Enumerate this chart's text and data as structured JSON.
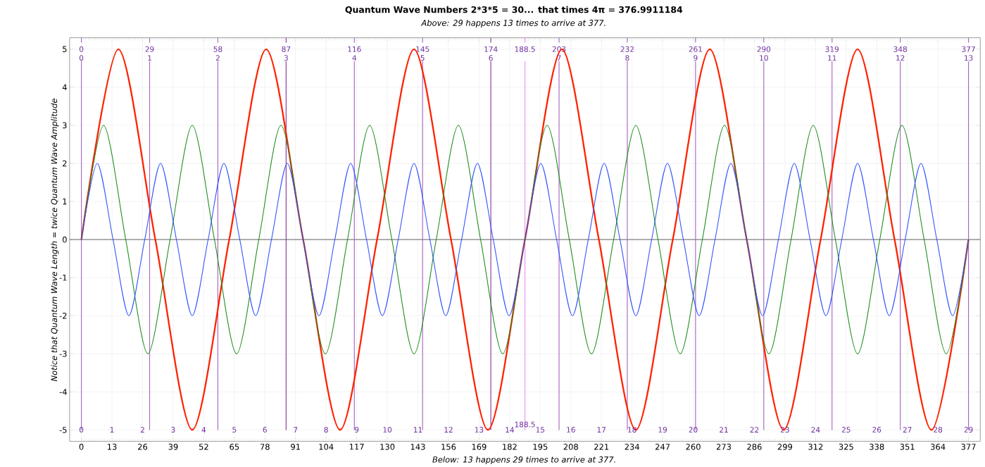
{
  "chart_data": {
    "type": "line",
    "title": "Quantum Wave Numbers 2*3*5 = 30... that times 4π = 376.9911184",
    "subtitle": "Above: 29 happens 13 times to arrive at 377.",
    "xlabel": "Below: 13 happens 29 times to arrive at 377.",
    "ylabel": "Notice that Quantum Wave Length = twice Quantum Wave Amplitude",
    "xlim": [
      -5,
      382
    ],
    "ylim": [
      -5.3,
      5.3
    ],
    "xticks": [
      0,
      13,
      26,
      39,
      52,
      65,
      78,
      91,
      104,
      117,
      130,
      143,
      156,
      169,
      182,
      195,
      208,
      221,
      234,
      247,
      260,
      273,
      286,
      299,
      312,
      325,
      338,
      351,
      364,
      377
    ],
    "yticks": [
      -5,
      -4,
      -3,
      -2,
      -1,
      0,
      1,
      2,
      3,
      4,
      5
    ],
    "grid": true,
    "marker": "none",
    "line_style": "solid",
    "series": [
      {
        "color": "#ff2200",
        "x": [
          0,
          15.71,
          31.42,
          47.12,
          62.83,
          78.54,
          94.25,
          109.96,
          125.66,
          141.37,
          157.08,
          172.79,
          188.5,
          204.2,
          219.91,
          235.62,
          251.33,
          267.04,
          282.74,
          298.45,
          314.16,
          329.87,
          345.58,
          361.28,
          376.99
        ],
        "values": [
          0,
          5,
          0,
          -5,
          0,
          5,
          0,
          -5,
          0,
          5,
          0,
          -5,
          0,
          5,
          0,
          -5,
          0,
          5,
          0,
          -5,
          0,
          5,
          0,
          -5,
          0
        ]
      },
      {
        "color": "#1a8a1a",
        "x": [
          0,
          9.42,
          18.85,
          28.27,
          37.7,
          47.12,
          56.55,
          65.97,
          75.4,
          84.82,
          94.25,
          103.67,
          113.1,
          122.52,
          131.95,
          141.37,
          150.8,
          160.22,
          169.65,
          179.07,
          188.5,
          197.92,
          207.35,
          216.77,
          226.19,
          235.62,
          245.04,
          254.47,
          263.89,
          273.32,
          282.74,
          292.17,
          301.59,
          311.02,
          320.44,
          329.87,
          339.29,
          348.72,
          358.14,
          367.57,
          376.99
        ],
        "values": [
          0,
          3,
          0,
          -3,
          0,
          3,
          0,
          -3,
          0,
          3,
          0,
          -3,
          0,
          3,
          0,
          -3,
          0,
          3,
          0,
          -3,
          0,
          3,
          0,
          -3,
          0,
          3,
          0,
          -3,
          0,
          3,
          0,
          -3,
          0,
          3,
          0,
          -3,
          0,
          3,
          0,
          -3,
          0
        ]
      },
      {
        "color": "#3050ff",
        "x": [
          0,
          6.73,
          13.46,
          20.2,
          26.93,
          33.66,
          40.39,
          47.12,
          53.86,
          60.59,
          67.32,
          74.05,
          80.78,
          87.52,
          94.25,
          100.98,
          107.71,
          114.44,
          121.18,
          127.91,
          134.64,
          141.37,
          148.1,
          154.84,
          161.57,
          168.3,
          175.03,
          181.76,
          188.5,
          195.23,
          201.96,
          208.69,
          215.42,
          222.16,
          228.89,
          235.62,
          242.35,
          249.08,
          255.82,
          262.55,
          269.28,
          276.01,
          282.74,
          289.48,
          296.21,
          302.94,
          309.67,
          316.4,
          323.14,
          329.87,
          336.6,
          343.33,
          350.06,
          356.8,
          363.53,
          370.26,
          376.99
        ],
        "values": [
          0,
          2,
          0,
          -2,
          0,
          2,
          0,
          -2,
          0,
          2,
          0,
          -2,
          0,
          2,
          0,
          -2,
          0,
          2,
          0,
          -2,
          0,
          2,
          0,
          -2,
          0,
          2,
          0,
          -2,
          0,
          2,
          0,
          -2,
          0,
          2,
          0,
          -2,
          0,
          2,
          0,
          -2,
          0,
          2,
          0,
          -2,
          0,
          2,
          0,
          -2,
          0,
          2,
          0,
          -2,
          0,
          2,
          0,
          -2,
          0
        ]
      }
    ],
    "ref_lines": [
      {
        "axis": "y",
        "value": 0,
        "color": "#808080"
      },
      {
        "axis": "x",
        "value": 0,
        "label": "0",
        "color": "#a868c0"
      },
      {
        "axis": "x",
        "value": 29,
        "label": "29",
        "color": "#a868c0"
      },
      {
        "axis": "x",
        "value": 58,
        "label": "58",
        "color": "#a868c0"
      },
      {
        "axis": "x",
        "value": 87,
        "label": "87",
        "color": "#8a3a9a"
      },
      {
        "axis": "x",
        "value": 116,
        "label": "116",
        "color": "#a868c0"
      },
      {
        "axis": "x",
        "value": 145,
        "label": "145",
        "color": "#a868c0"
      },
      {
        "axis": "x",
        "value": 174,
        "label": "174",
        "color": "#8a3a9a"
      },
      {
        "axis": "x",
        "value": 203,
        "label": "203",
        "color": "#a868c0"
      },
      {
        "axis": "x",
        "value": 232,
        "label": "232",
        "color": "#a868c0"
      },
      {
        "axis": "x",
        "value": 261,
        "label": "261",
        "color": "#a868c0"
      },
      {
        "axis": "x",
        "value": 290,
        "label": "290",
        "color": "#a868c0"
      },
      {
        "axis": "x",
        "value": 319,
        "label": "319",
        "color": "#a868c0"
      },
      {
        "axis": "x",
        "value": 348,
        "label": "348",
        "color": "#a868c0"
      },
      {
        "axis": "x",
        "value": 377,
        "label": "377",
        "color": "#a868c0"
      },
      {
        "axis": "x",
        "value": 188.5,
        "label": "188.5",
        "color": "#f090f0"
      }
    ],
    "annotations": [
      {
        "text": "188.5",
        "x": 188.5,
        "y": -4.95
      },
      "0",
      "1",
      "2",
      "3",
      "4",
      "5",
      "6",
      "7",
      "8",
      "9",
      "10",
      "11",
      "12",
      "13",
      "0",
      "1",
      "2",
      "3",
      "4",
      "5",
      "6",
      "7",
      "8",
      "9",
      "10",
      "11",
      "12",
      "13",
      "14",
      "15",
      "16",
      "17",
      "18",
      "19",
      "20",
      "21",
      "22",
      "23",
      "24",
      "25",
      "26",
      "27",
      "28",
      "29"
    ]
  }
}
